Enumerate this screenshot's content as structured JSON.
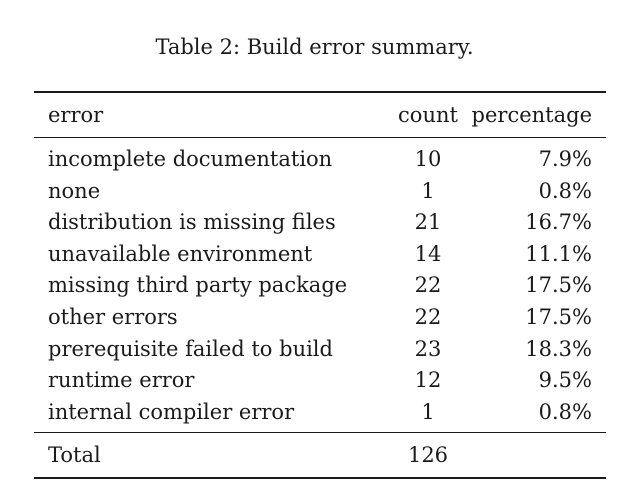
{
  "caption": "Table 2: Build error summary.",
  "table": {
    "headers": {
      "error": "error",
      "count": "count",
      "percentage": "percentage"
    },
    "rows": [
      {
        "error": "incomplete documentation",
        "count": "10",
        "percentage": "7.9%"
      },
      {
        "error": "none",
        "count": "1",
        "percentage": "0.8%"
      },
      {
        "error": "distribution is missing files",
        "count": "21",
        "percentage": "16.7%"
      },
      {
        "error": "unavailable environment",
        "count": "14",
        "percentage": "11.1%"
      },
      {
        "error": "missing third party package",
        "count": "22",
        "percentage": "17.5%"
      },
      {
        "error": "other errors",
        "count": "22",
        "percentage": "17.5%"
      },
      {
        "error": "prerequisite failed to build",
        "count": "23",
        "percentage": "18.3%"
      },
      {
        "error": "runtime error",
        "count": "12",
        "percentage": "9.5%"
      },
      {
        "error": "internal compiler error",
        "count": "1",
        "percentage": "0.8%"
      }
    ],
    "total": {
      "label": "Total",
      "count": "126",
      "percentage": ""
    }
  }
}
